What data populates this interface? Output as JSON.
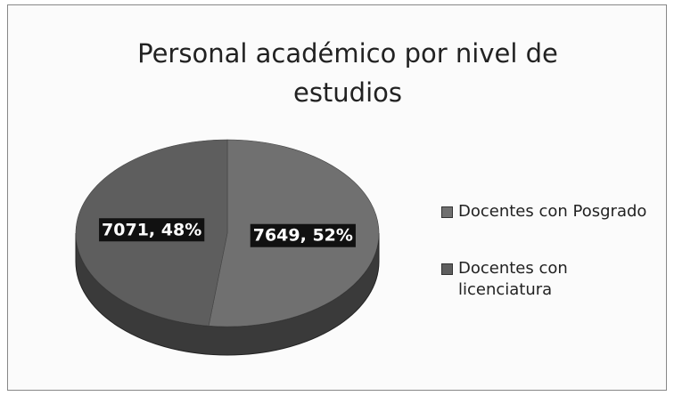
{
  "chart_data": {
    "type": "pie",
    "title": "Personal académico por nivel de estudios",
    "categories": [
      "Docentes con Posgrado",
      "Docentes con licenciatura"
    ],
    "values": [
      7649,
      7071
    ],
    "value_labels": [
      "7649, 52%",
      "7071, 48%"
    ],
    "colors": [
      "#707070",
      "#5e5e5e"
    ],
    "legend": "right"
  }
}
